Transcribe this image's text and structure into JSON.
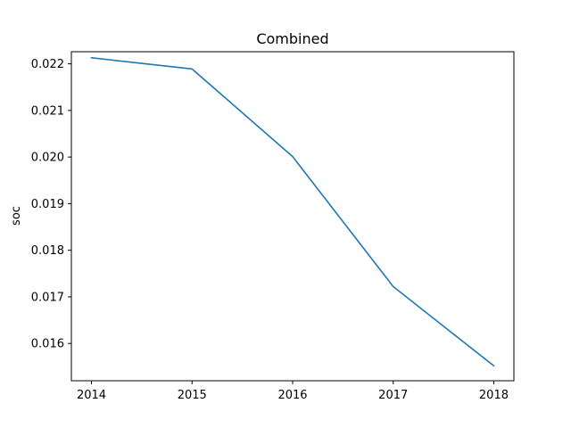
{
  "chart_data": {
    "type": "line",
    "title": "Combined",
    "xlabel": "",
    "ylabel": "soc",
    "x": [
      2014,
      2015,
      2016,
      2017,
      2018
    ],
    "series": [
      {
        "values": [
          0.02213,
          0.02189,
          0.02001,
          0.01722,
          0.01552
        ],
        "color": "#1f77b4"
      }
    ],
    "xticks": [
      "2014",
      "2015",
      "2016",
      "2017",
      "2018"
    ],
    "yticks": [
      "0.016",
      "0.017",
      "0.018",
      "0.019",
      "0.020",
      "0.021",
      "0.022"
    ],
    "ylim": [
      0.0152,
      0.02226
    ],
    "xlim": [
      2013.8,
      2018.2
    ],
    "grid": false
  }
}
